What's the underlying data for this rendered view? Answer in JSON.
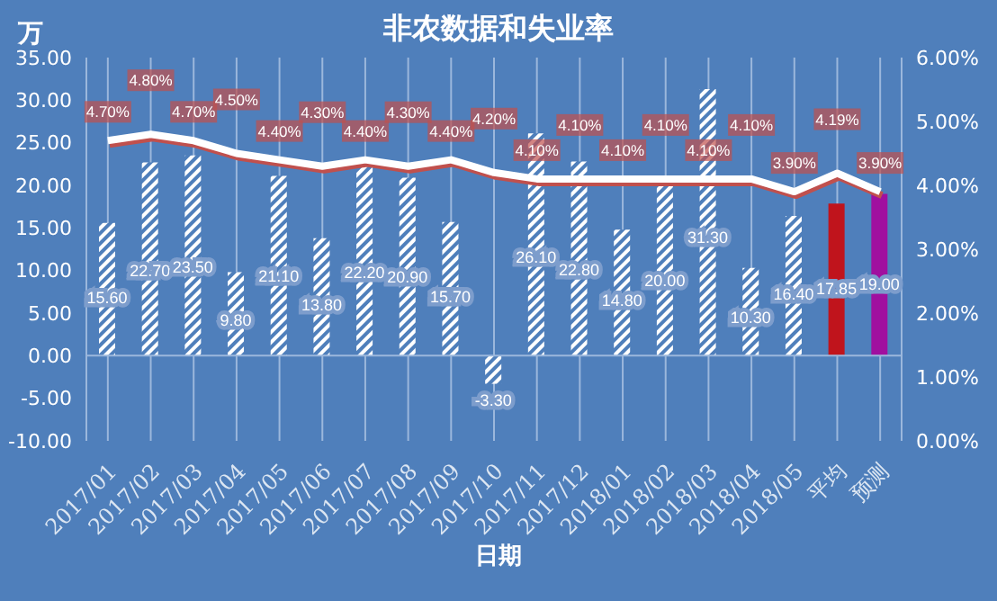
{
  "chart_data": {
    "type": "bar",
    "title": "非农数据和失业率",
    "xlabel": "日期",
    "ylabel": "万",
    "categories": [
      "2017/01",
      "2017/02",
      "2017/03",
      "2017/04",
      "2017/05",
      "2017/06",
      "2017/07",
      "2017/08",
      "2017/09",
      "2017/10",
      "2017/11",
      "2017/12",
      "2018/01",
      "2018/02",
      "2018/03",
      "2018/04",
      "2018/05",
      "平均",
      "预测"
    ],
    "series": [
      {
        "colors": [
          "#ffffff",
          "#ffffff",
          "#ffffff",
          "#ffffff",
          "#ffffff",
          "#ffffff",
          "#ffffff",
          "#ffffff",
          "#ffffff",
          "#ffffff",
          "#ffffff",
          "#ffffff",
          "#ffffff",
          "#ffffff",
          "#ffffff",
          "#ffffff",
          "#ffffff",
          "#c0141c",
          "#a0109f"
        ],
        "values": [
          15.6,
          22.7,
          23.5,
          9.8,
          21.1,
          13.8,
          22.2,
          20.9,
          15.7,
          -3.3,
          26.1,
          22.8,
          14.8,
          20.0,
          31.3,
          10.3,
          16.4,
          17.85,
          19.0
        ],
        "value_labels": [
          "15.60",
          "22.70",
          "23.50",
          "9.80",
          "21.10",
          "13.80",
          "22.20",
          "20.90",
          "15.70",
          "-3.30",
          "26.10",
          "22.80",
          "14.80",
          "20.00",
          "31.30",
          "10.30",
          "16.40",
          "17.85",
          "19.00"
        ]
      },
      {
        "type": "line",
        "axis": "y2",
        "color": "#ffffff",
        "values": [
          4.7,
          4.8,
          4.7,
          4.5,
          4.4,
          4.3,
          4.4,
          4.3,
          4.4,
          4.2,
          4.1,
          4.1,
          4.1,
          4.1,
          4.1,
          4.1,
          3.9,
          4.19,
          3.9
        ],
        "value_labels": [
          "4.70%",
          "4.80%",
          "4.70%",
          "4.50%",
          "4.40%",
          "4.30%",
          "4.40%",
          "4.30%",
          "4.40%",
          "4.20%",
          "4.10%",
          "4.10%",
          "4.10%",
          "4.10%",
          "4.10%",
          "4.10%",
          "3.90%",
          "4.19%",
          "3.90%"
        ]
      }
    ],
    "ylim": [
      -10,
      35
    ],
    "yticks": [
      {
        "value": -10,
        "label": "-10.00"
      },
      {
        "value": -5,
        "label": "-5.00"
      },
      {
        "value": 0,
        "label": "0.00"
      },
      {
        "value": 5,
        "label": "5.00"
      },
      {
        "value": 10,
        "label": "10.00"
      },
      {
        "value": 15,
        "label": "15.00"
      },
      {
        "value": 20,
        "label": "20.00"
      },
      {
        "value": 25,
        "label": "25.00"
      },
      {
        "value": 30,
        "label": "30.00"
      },
      {
        "value": 35,
        "label": "35.00"
      }
    ],
    "y2lim": [
      0,
      6
    ],
    "y2ticks": [
      {
        "value": 0,
        "label": "0.00%"
      },
      {
        "value": 1,
        "label": "1.00%"
      },
      {
        "value": 2,
        "label": "2.00%"
      },
      {
        "value": 3,
        "label": "3.00%"
      },
      {
        "value": 4,
        "label": "4.00%"
      },
      {
        "value": 5,
        "label": "5.00%"
      },
      {
        "value": 6,
        "label": "6.00%"
      }
    ],
    "ref_lines": [
      {
        "axis": "y",
        "value": 0,
        "color": "#9bb7dc"
      }
    ],
    "grid": "x",
    "legend": false
  }
}
